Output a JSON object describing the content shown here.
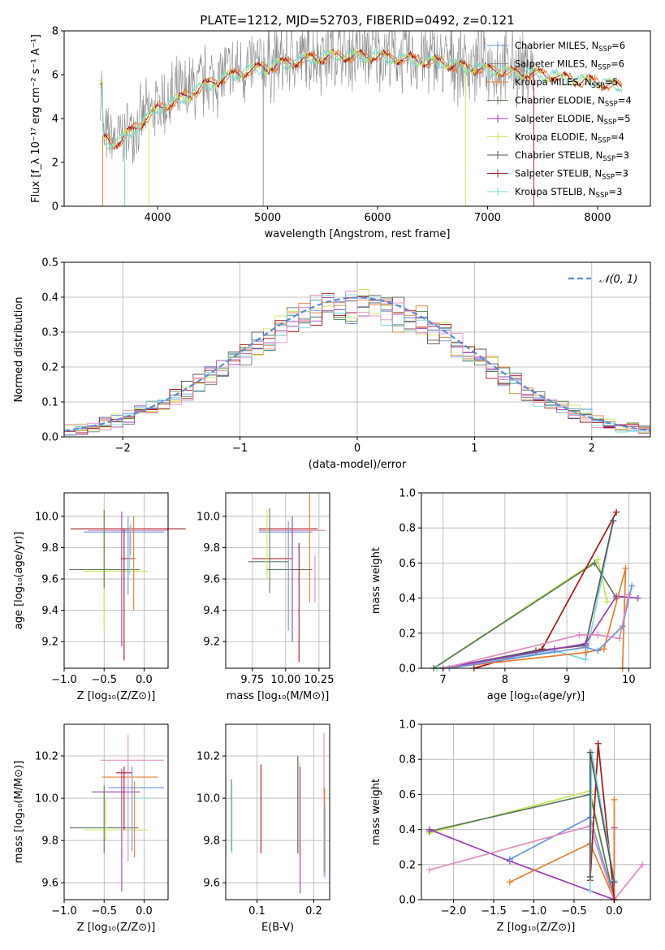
{
  "title": "PLATE=1212, MJD=52703, FIBERID=0492, z=0.121",
  "palette": {
    "chabrier_miles": "#6a93d8",
    "salpeter_miles": "#8a8a8a",
    "kroupa_miles": "#e6802e",
    "chabrier_elodie": "#5c7a5c",
    "salpeter_elodie": "#9b3fb5",
    "kroupa_elodie": "#c8e65a",
    "chabrier_stelib": "#555555",
    "salpeter_stelib": "#a81818",
    "kroupa_stelib": "#7dd8dc",
    "pink": "#e08cc0",
    "normal": "#5b8bd4"
  },
  "chart_data": [
    {
      "id": "spectrum",
      "type": "line",
      "title": "PLATE=1212, MJD=52703, FIBERID=0492, z=0.121",
      "xlabel": "wavelength [Angstrom, rest frame]",
      "ylabel": "Flux [f_λ 10⁻¹⁷ erg cm⁻² s⁻¹ A⁻¹]",
      "xlim": [
        3150,
        8480
      ],
      "ylim": [
        0,
        8
      ],
      "xticks": [
        "4000",
        "5000",
        "6000",
        "7000",
        "8000"
      ],
      "yticks": [
        "0",
        "2",
        "4",
        "6",
        "8"
      ],
      "legend_position": "right",
      "legend": [
        {
          "label": "Chabrier MILES, N",
          "sub": "SSP",
          "tail": "=6"
        },
        {
          "label": "Salpeter MILES, N",
          "sub": "SSP",
          "tail": "=6"
        },
        {
          "label": "Kroupa MILES, N",
          "sub": "SSP",
          "tail": "=5"
        },
        {
          "label": "Chabrier ELODIE, N",
          "sub": "SSP",
          "tail": "=4"
        },
        {
          "label": "Salpeter ELODIE, N",
          "sub": "SSP",
          "tail": "=5"
        },
        {
          "label": "Kroupa ELODIE, N",
          "sub": "SSP",
          "tail": "=4"
        },
        {
          "label": "Chabrier STELIB, N",
          "sub": "SSP",
          "tail": "=3"
        },
        {
          "label": "Salpeter STELIB, N",
          "sub": "SSP",
          "tail": "=3"
        },
        {
          "label": "Kroupa STELIB, N",
          "sub": "SSP",
          "tail": "=3"
        }
      ],
      "continuum": [
        [
          3500,
          3.2
        ],
        [
          3600,
          3.0
        ],
        [
          3700,
          3.3
        ],
        [
          3800,
          3.7
        ],
        [
          3900,
          4.2
        ],
        [
          4000,
          4.6
        ],
        [
          4200,
          5.0
        ],
        [
          4400,
          5.6
        ],
        [
          4600,
          6.0
        ],
        [
          4800,
          6.3
        ],
        [
          5000,
          6.5
        ],
        [
          5200,
          6.7
        ],
        [
          5400,
          6.9
        ],
        [
          5600,
          7.0
        ],
        [
          5800,
          7.0
        ],
        [
          6000,
          7.0
        ],
        [
          6200,
          6.9
        ],
        [
          6400,
          6.8
        ],
        [
          6600,
          6.7
        ],
        [
          6800,
          6.5
        ],
        [
          7000,
          6.4
        ],
        [
          7200,
          6.3
        ],
        [
          7400,
          6.2
        ],
        [
          7600,
          6.1
        ],
        [
          7800,
          5.9
        ],
        [
          8000,
          5.8
        ],
        [
          8200,
          5.6
        ]
      ]
    },
    {
      "id": "residuals",
      "type": "bar",
      "xlabel": "(data-model)/error",
      "ylabel": "Normed distribution",
      "xlim": [
        -2.5,
        2.5
      ],
      "ylim": [
        0,
        0.5
      ],
      "xticks": [
        "−2",
        "−1",
        "0",
        "1",
        "2"
      ],
      "yticks": [
        "0.0",
        "0.1",
        "0.2",
        "0.3",
        "0.4",
        "0.5"
      ],
      "legend": "𝒩(0, 1)",
      "legend_position": "top-right",
      "bin_width": 0.1
    },
    {
      "id": "age-Z",
      "type": "scatter",
      "xlabel": "Z [log₁₀(Z/Z⊙)]",
      "ylabel": "age  [log₁₀(age/yr)]",
      "xlim": [
        -1.0,
        0.3
      ],
      "ylim": [
        9.03,
        10.15
      ],
      "xticks": [
        "−1.0",
        "−0.5",
        "0.0"
      ],
      "yticks": [
        "9.2",
        "9.4",
        "9.6",
        "9.8",
        "10.0"
      ],
      "points": [
        {
          "x": -0.2,
          "y": 9.92,
          "xerr": 0.72,
          "yerr": 0.0,
          "c": "salpeter_stelib"
        },
        {
          "x": -0.2,
          "y": 9.91,
          "xerr": 0.5,
          "yerr": 0.0,
          "c": "pink"
        },
        {
          "x": -0.25,
          "y": 9.9,
          "xerr": 0.5,
          "yerr": 0.0,
          "c": "chabrier_miles"
        },
        {
          "x": -0.2,
          "y": 9.73,
          "xerr": 0.09,
          "yerr": 0.0,
          "c": "salpeter_stelib"
        },
        {
          "x": -0.2,
          "y": 9.71,
          "xerr": 0.0,
          "yerr": 0.0,
          "c": "kroupa_stelib"
        },
        {
          "x": -0.5,
          "y": 9.66,
          "xerr": 0.44,
          "yerr": 0.0,
          "c": "chabrier_elodie"
        },
        {
          "x": -0.5,
          "y": 9.66,
          "xerr": 0.0,
          "yerr": 0.39,
          "c": "kroupa_elodie"
        },
        {
          "x": -0.35,
          "y": 9.65,
          "xerr": 0.4,
          "yerr": 0.0,
          "c": "kroupa_elodie"
        },
        {
          "x": -0.5,
          "y": 9.79,
          "xerr": 0.0,
          "yerr": 0.25,
          "c": "chabrier_elodie"
        },
        {
          "x": -0.28,
          "y": 9.6,
          "xerr": 0.0,
          "yerr": 0.43,
          "c": "salpeter_elodie"
        },
        {
          "x": -0.25,
          "y": 9.5,
          "xerr": 0.0,
          "yerr": 0.42,
          "c": "salpeter_stelib"
        },
        {
          "x": -0.2,
          "y": 9.75,
          "xerr": 0.0,
          "yerr": 0.25,
          "c": "chabrier_miles"
        },
        {
          "x": -0.13,
          "y": 9.7,
          "xerr": 0.0,
          "yerr": 0.3,
          "c": "kroupa_miles"
        },
        {
          "x": -0.18,
          "y": 9.78,
          "xerr": 0.0,
          "yerr": 0.15,
          "c": "kroupa_stelib"
        },
        {
          "x": -0.17,
          "y": 9.85,
          "xerr": 0.0,
          "yerr": 0.1,
          "c": "pink"
        }
      ]
    },
    {
      "id": "age-mass",
      "type": "scatter",
      "xlabel": "mass [log₁₀(M/M⊙)]",
      "ylabel": "",
      "xlim": [
        9.55,
        10.33
      ],
      "ylim": [
        9.03,
        10.15
      ],
      "xticks": [
        "9.75",
        "10.00",
        "10.25"
      ],
      "yticks": [
        "9.2",
        "9.4",
        "9.6",
        "9.8",
        "10.0"
      ],
      "points": [
        {
          "x": 10.02,
          "y": 9.92,
          "xerr": 0.22,
          "yerr": 0.0,
          "c": "salpeter_stelib"
        },
        {
          "x": 10.05,
          "y": 9.91,
          "xerr": 0.25,
          "yerr": 0.0,
          "c": "pink"
        },
        {
          "x": 10.0,
          "y": 9.9,
          "xerr": 0.2,
          "yerr": 0.0,
          "c": "chabrier_miles"
        },
        {
          "x": 9.9,
          "y": 9.73,
          "xerr": 0.15,
          "yerr": 0.0,
          "c": "salpeter_stelib"
        },
        {
          "x": 9.87,
          "y": 9.71,
          "xerr": 0.15,
          "yerr": 0.0,
          "c": "chabrier_elodie"
        },
        {
          "x": 10.03,
          "y": 9.66,
          "xerr": 0.17,
          "yerr": 0.0,
          "c": "chabrier_elodie"
        },
        {
          "x": 9.86,
          "y": 9.82,
          "xerr": 0.0,
          "yerr": 0.22,
          "c": "kroupa_elodie"
        },
        {
          "x": 9.88,
          "y": 9.78,
          "xerr": 0.0,
          "yerr": 0.27,
          "c": "chabrier_elodie"
        },
        {
          "x": 10.02,
          "y": 9.62,
          "xerr": 0.0,
          "yerr": 0.35,
          "c": "chabrier_miles"
        },
        {
          "x": 10.05,
          "y": 9.6,
          "xerr": 0.0,
          "yerr": 0.4,
          "c": "salpeter_elodie"
        },
        {
          "x": 10.1,
          "y": 9.45,
          "xerr": 0.0,
          "yerr": 0.38,
          "c": "salpeter_stelib"
        },
        {
          "x": 10.18,
          "y": 9.8,
          "xerr": 0.0,
          "yerr": 0.35,
          "c": "kroupa_miles"
        },
        {
          "x": 10.22,
          "y": 9.6,
          "xerr": 0.0,
          "yerr": 0.15,
          "c": "pink"
        }
      ]
    },
    {
      "id": "weight-age",
      "type": "line",
      "xlabel": "age  [log₁₀(age/yr)]",
      "ylabel": "mass weight",
      "xlim": [
        6.65,
        10.35
      ],
      "ylim": [
        0,
        1.0
      ],
      "xticks": [
        "7",
        "8",
        "9",
        "10"
      ],
      "yticks": [
        "0.0",
        "0.2",
        "0.4",
        "0.6",
        "0.8",
        "1.0"
      ],
      "series": [
        {
          "c": "kroupa_elodie",
          "pts": [
            [
              6.85,
              0.0
            ],
            [
              9.5,
              0.62
            ],
            [
              9.65,
              0.38
            ]
          ]
        },
        {
          "c": "chabrier_elodie",
          "pts": [
            [
              6.85,
              0.0
            ],
            [
              9.45,
              0.6
            ],
            [
              9.8,
              0.4
            ]
          ]
        },
        {
          "c": "salpeter_stelib",
          "pts": [
            [
              7.5,
              0.0
            ],
            [
              8.6,
              0.11
            ],
            [
              9.8,
              0.89
            ]
          ]
        },
        {
          "c": "kroupa_stelib",
          "pts": [
            [
              6.9,
              0.0
            ],
            [
              8.8,
              0.1
            ],
            [
              9.3,
              0.05
            ],
            [
              9.75,
              0.84
            ]
          ]
        },
        {
          "c": "chabrier_stelib",
          "pts": [
            [
              7.0,
              0.0
            ],
            [
              8.5,
              0.1
            ],
            [
              9.3,
              0.13
            ],
            [
              9.75,
              0.84
            ]
          ]
        },
        {
          "c": "salpeter_elodie",
          "pts": [
            [
              7.0,
              0.0
            ],
            [
              8.8,
              0.11
            ],
            [
              9.3,
              0.14
            ],
            [
              9.8,
              0.41
            ],
            [
              10.15,
              0.4
            ]
          ]
        },
        {
          "c": "kroupa_miles",
          "pts": [
            [
              7.0,
              0.0
            ],
            [
              9.3,
              0.09
            ],
            [
              9.6,
              0.11
            ],
            [
              9.95,
              0.57
            ],
            [
              9.9,
              0.0
            ]
          ]
        },
        {
          "c": "chabrier_miles",
          "pts": [
            [
              7.1,
              0.0
            ],
            [
              9.3,
              0.12
            ],
            [
              9.5,
              0.1
            ],
            [
              9.9,
              0.24
            ],
            [
              10.05,
              0.47
            ]
          ]
        },
        {
          "c": "pink",
          "pts": [
            [
              7.0,
              0.0
            ],
            [
              9.2,
              0.19
            ],
            [
              9.5,
              0.19
            ],
            [
              9.85,
              0.17
            ],
            [
              10.0,
              0.42
            ]
          ]
        }
      ]
    },
    {
      "id": "mass-Z",
      "type": "scatter",
      "xlabel": "Z [log₁₀(Z/Z⊙)]",
      "ylabel": "mass [log₁₀(M/M⊙)]",
      "xlim": [
        -1.0,
        0.3
      ],
      "ylim": [
        9.52,
        10.35
      ],
      "xticks": [
        "−1.0",
        "−0.5",
        "0.0"
      ],
      "yticks": [
        "9.6",
        "9.8",
        "10.0",
        "10.2"
      ],
      "points": [
        {
          "x": -0.15,
          "y": 10.18,
          "xerr": 0.4,
          "yerr": 0.0,
          "c": "pink"
        },
        {
          "x": -0.25,
          "y": 10.12,
          "xerr": 0.1,
          "yerr": 0.0,
          "c": "salpeter_stelib"
        },
        {
          "x": -0.18,
          "y": 10.1,
          "xerr": 0.35,
          "yerr": 0.0,
          "c": "kroupa_miles"
        },
        {
          "x": -0.1,
          "y": 10.05,
          "xerr": 0.35,
          "yerr": 0.0,
          "c": "chabrier_miles"
        },
        {
          "x": -0.35,
          "y": 10.03,
          "xerr": 0.3,
          "yerr": 0.0,
          "c": "salpeter_elodie"
        },
        {
          "x": -0.05,
          "y": 10.0,
          "xerr": 0.1,
          "yerr": 0.0,
          "c": "kroupa_stelib"
        },
        {
          "x": -0.5,
          "y": 9.86,
          "xerr": 0.43,
          "yerr": 0.0,
          "c": "chabrier_elodie"
        },
        {
          "x": -0.35,
          "y": 9.85,
          "xerr": 0.4,
          "yerr": 0.0,
          "c": "kroupa_elodie"
        },
        {
          "x": -0.5,
          "y": 9.9,
          "xerr": 0.0,
          "yerr": 0.16,
          "c": "chabrier_elodie"
        },
        {
          "x": -0.48,
          "y": 9.9,
          "xerr": 0.0,
          "yerr": 0.1,
          "c": "kroupa_elodie"
        },
        {
          "x": -0.28,
          "y": 9.85,
          "xerr": 0.0,
          "yerr": 0.29,
          "c": "salpeter_elodie"
        },
        {
          "x": -0.25,
          "y": 10.0,
          "xerr": 0.0,
          "yerr": 0.15,
          "c": "salpeter_stelib"
        },
        {
          "x": -0.2,
          "y": 10.0,
          "xerr": 0.0,
          "yerr": 0.3,
          "c": "pink"
        },
        {
          "x": -0.12,
          "y": 9.9,
          "xerr": 0.0,
          "yerr": 0.18,
          "c": "kroupa_miles"
        },
        {
          "x": -0.15,
          "y": 9.95,
          "xerr": 0.0,
          "yerr": 0.2,
          "c": "chabrier_miles"
        }
      ]
    },
    {
      "id": "mass-ebv",
      "type": "scatter",
      "xlabel": "E(B-V)",
      "ylabel": "",
      "xlim": [
        0.045,
        0.228
      ],
      "ylim": [
        9.52,
        10.35
      ],
      "xticks": [
        "0.1",
        "0.2"
      ],
      "yticks": [
        "9.6",
        "9.8",
        "10.0",
        "10.2"
      ],
      "points": [
        {
          "x": 0.055,
          "y": 9.92,
          "xerr": 0.0,
          "yerr": 0.17,
          "c": "chabrier_elodie"
        },
        {
          "x": 0.056,
          "y": 9.9,
          "xerr": 0.0,
          "yerr": 0.16,
          "c": "kroupa_stelib"
        },
        {
          "x": 0.107,
          "y": 9.95,
          "xerr": 0.0,
          "yerr": 0.21,
          "c": "salpeter_stelib"
        },
        {
          "x": 0.172,
          "y": 9.97,
          "xerr": 0.0,
          "yerr": 0.23,
          "c": "chabrier_stelib"
        },
        {
          "x": 0.175,
          "y": 9.95,
          "xerr": 0.0,
          "yerr": 0.22,
          "c": "kroupa_elodie"
        },
        {
          "x": 0.176,
          "y": 9.85,
          "xerr": 0.0,
          "yerr": 0.3,
          "c": "salpeter_elodie"
        },
        {
          "x": 0.218,
          "y": 9.97,
          "xerr": 0.0,
          "yerr": 0.34,
          "c": "pink"
        },
        {
          "x": 0.219,
          "y": 9.85,
          "xerr": 0.0,
          "yerr": 0.2,
          "c": "kroupa_miles"
        },
        {
          "x": 0.22,
          "y": 9.8,
          "xerr": 0.0,
          "yerr": 0.18,
          "c": "kroupa_stelib"
        }
      ]
    },
    {
      "id": "weight-Z",
      "type": "line",
      "xlabel": "Z [log₁₀(Z/Z⊙)]",
      "ylabel": "mass weight",
      "xlim": [
        -2.4,
        0.45
      ],
      "ylim": [
        0,
        1.0
      ],
      "xticks": [
        "−2.0",
        "−1.5",
        "−1.0",
        "−0.5",
        "0.0"
      ],
      "yticks": [
        "0.0",
        "0.2",
        "0.4",
        "0.6",
        "0.8",
        "1.0"
      ],
      "series": [
        {
          "c": "kroupa_elodie",
          "pts": [
            [
              -2.3,
              0.38
            ],
            [
              -0.3,
              0.62
            ],
            [
              0.0,
              0.0
            ]
          ]
        },
        {
          "c": "chabrier_elodie",
          "pts": [
            [
              -2.3,
              0.39
            ],
            [
              -0.3,
              0.6
            ],
            [
              0.0,
              0.0
            ]
          ]
        },
        {
          "c": "salpeter_elodie",
          "pts": [
            [
              -2.3,
              0.4
            ],
            [
              -1.3,
              0.22
            ],
            [
              0.0,
              0.0
            ],
            [
              0.0,
              0.41
            ]
          ]
        },
        {
          "c": "chabrier_miles",
          "pts": [
            [
              -1.3,
              0.23
            ],
            [
              -0.3,
              0.47
            ],
            [
              0.0,
              0.0
            ]
          ]
        },
        {
          "c": "kroupa_miles",
          "pts": [
            [
              -1.3,
              0.1
            ],
            [
              -0.3,
              0.32
            ],
            [
              0.0,
              0.0
            ],
            [
              0.0,
              0.57
            ]
          ]
        },
        {
          "c": "pink",
          "pts": [
            [
              -2.3,
              0.17
            ],
            [
              -0.3,
              0.42
            ],
            [
              0.0,
              0.0
            ],
            [
              0.35,
              0.2
            ]
          ]
        },
        {
          "c": "salpeter_stelib",
          "pts": [
            [
              -0.3,
              0.11
            ],
            [
              -0.2,
              0.89
            ],
            [
              0.0,
              0.0
            ]
          ]
        },
        {
          "c": "kroupa_stelib",
          "pts": [
            [
              -0.3,
              0.05
            ],
            [
              -0.28,
              0.84
            ],
            [
              0.0,
              0.11
            ]
          ]
        },
        {
          "c": "chabrier_stelib",
          "pts": [
            [
              -0.3,
              0.13
            ],
            [
              -0.3,
              0.84
            ],
            [
              0.0,
              0.1
            ]
          ]
        }
      ]
    }
  ]
}
